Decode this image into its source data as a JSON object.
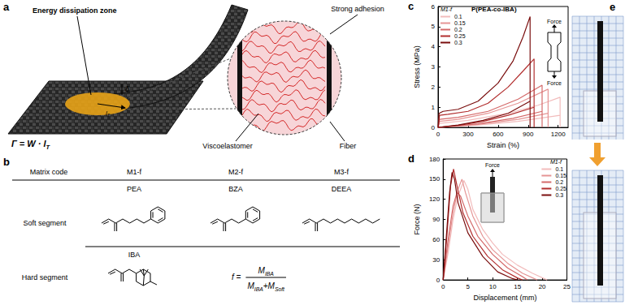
{
  "panels": {
    "a": {
      "label": "a",
      "energy_zone": "Energy dissipation zone",
      "strong_adhesion": "Strong adhesion",
      "viscoelastomer": "Viscoelastomer",
      "fiber": "Fiber",
      "delta": "δ",
      "length": [
        {
          "text": "l",
          "sub": "T"
        }
      ],
      "equation": [
        {
          "text": "Γ = W · l",
          "sub": "T"
        }
      ]
    },
    "b": {
      "label": "b",
      "table": {
        "header": [
          "Matrix code",
          "M1-f",
          "M2-f",
          "M3-f"
        ],
        "rows": [
          {
            "label": "Soft segment",
            "names": [
              "PEA",
              "BZA",
              "DEEA"
            ]
          },
          {
            "label": "Hard segment",
            "names": [
              "IBA"
            ]
          }
        ]
      },
      "formula": {
        "lhs": [
          {
            "text": "f ="
          }
        ],
        "numerator": [
          {
            "text": "M",
            "sub": "IBA"
          }
        ],
        "denominator": [
          {
            "text": "M",
            "sub": "IBA"
          },
          {
            "text": "+M",
            "sub": "Soft"
          }
        ]
      }
    },
    "e": {
      "label": "e"
    }
  },
  "chart_data": [
    {
      "panel": "c",
      "type": "line",
      "title": "P(PEA-co-IBA)",
      "legend_title": "M1-f",
      "legend": "upper left",
      "x_label": "Strain (%)",
      "y_label": "Stress (MPa)",
      "xlim": [
        0,
        1300
      ],
      "xticks": [
        0,
        300,
        600,
        900,
        1200
      ],
      "ylim": [
        0,
        6
      ],
      "yticks": [
        0,
        1,
        2,
        3,
        4,
        5,
        6
      ],
      "grid": false,
      "annotations": [
        "Force",
        "Force"
      ],
      "series": [
        {
          "name": "0.1",
          "color": "#f2bcbc",
          "x": [
            0,
            15,
            300,
            700,
            1000,
            1220,
            1220,
            1220,
            800,
            400,
            0
          ],
          "values": [
            0,
            0.2,
            0.35,
            0.7,
            1.1,
            1.5,
            0,
            0.6,
            0.3,
            0.12,
            0
          ]
        },
        {
          "name": "0.15",
          "color": "#e59494",
          "x": [
            0,
            15,
            200,
            500,
            800,
            1100,
            1100,
            1100,
            800,
            400,
            0
          ],
          "values": [
            0,
            0.3,
            0.4,
            0.7,
            1.2,
            1.9,
            0,
            0.7,
            0.4,
            0.15,
            0
          ]
        },
        {
          "name": "0.2",
          "color": "#d46a6a",
          "x": [
            0,
            15,
            200,
            500,
            800,
            1040,
            1040,
            1040,
            750,
            400,
            0
          ],
          "values": [
            0,
            0.4,
            0.5,
            0.8,
            1.4,
            2.1,
            0,
            0.8,
            0.45,
            0.18,
            0
          ]
        },
        {
          "name": "0.25",
          "color": "#b22e2e",
          "x": [
            0,
            15,
            100,
            300,
            500,
            700,
            850,
            960,
            960,
            960,
            700,
            450,
            200,
            0
          ],
          "values": [
            0,
            0.6,
            0.65,
            0.8,
            1.2,
            2.0,
            2.8,
            3.4,
            0,
            1.0,
            0.6,
            0.3,
            0.1,
            0
          ]
        },
        {
          "name": "0.3",
          "color": "#7a0e0e",
          "x": [
            0,
            10,
            50,
            200,
            400,
            600,
            750,
            850,
            920,
            920,
            920,
            700,
            450,
            200,
            0
          ],
          "values": [
            0,
            0.7,
            0.8,
            0.9,
            1.3,
            2.2,
            3.3,
            4.5,
            5.5,
            0,
            1.3,
            0.7,
            0.35,
            0.12,
            0
          ]
        }
      ]
    },
    {
      "panel": "d",
      "type": "line",
      "legend_title": "M1-f",
      "legend": "upper right",
      "x_label": "Displacement (mm)",
      "y_label": "Force (N)",
      "xlim": [
        0,
        25
      ],
      "xticks": [
        0,
        5,
        10,
        15,
        20,
        25
      ],
      "ylim": [
        0,
        180
      ],
      "yticks": [
        0,
        30,
        60,
        90,
        120,
        150,
        180
      ],
      "grid": false,
      "annotations": [
        "Force"
      ],
      "series": [
        {
          "name": "0.1",
          "color": "#f2bcbc",
          "x": [
            0,
            1,
            2,
            3,
            4.2,
            5,
            6,
            8,
            10,
            12,
            15,
            18,
            21
          ],
          "values": [
            0,
            40,
            90,
            125,
            148,
            135,
            105,
            75,
            55,
            38,
            22,
            10,
            0
          ]
        },
        {
          "name": "0.15",
          "color": "#e59494",
          "x": [
            0,
            1,
            2,
            3,
            3.8,
            4.5,
            6,
            8,
            10,
            13,
            16,
            19
          ],
          "values": [
            0,
            50,
            100,
            135,
            150,
            130,
            95,
            65,
            45,
            25,
            10,
            0
          ]
        },
        {
          "name": "0.2",
          "color": "#d46a6a",
          "x": [
            0,
            1,
            2,
            2.8,
            3.5,
            5,
            7,
            10,
            13,
            16,
            17
          ],
          "values": [
            0,
            60,
            110,
            130,
            125,
            95,
            65,
            38,
            18,
            5,
            0
          ]
        },
        {
          "name": "0.25",
          "color": "#b22e2e",
          "x": [
            0,
            0.8,
            1.5,
            2.1,
            2.8,
            4,
            6,
            9,
            12,
            15,
            16
          ],
          "values": [
            0,
            70,
            140,
            165,
            140,
            100,
            65,
            35,
            15,
            3,
            0
          ]
        },
        {
          "name": "0.3",
          "color": "#7a0e0e",
          "x": [
            0,
            0.7,
            1.3,
            1.8,
            2.3,
            3,
            5,
            8,
            11,
            14,
            15
          ],
          "values": [
            0,
            70,
            130,
            160,
            150,
            115,
            70,
            35,
            12,
            2,
            0
          ]
        }
      ]
    }
  ]
}
